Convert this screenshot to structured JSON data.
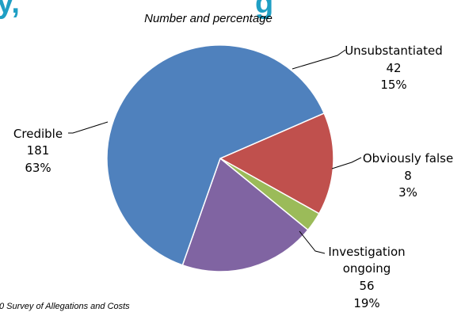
{
  "header": {
    "title_fragment_left": "y,",
    "title_fragment_right": "g",
    "title_color": "#1f9fc4"
  },
  "chart_data": {
    "type": "pie",
    "subtitle": "Number and percentage",
    "start_angle_deg": 66.5,
    "direction": "clockwise",
    "slices": [
      {
        "name": "Unsubstantiated",
        "value": 42,
        "percent": "15%",
        "color": "#c0504d"
      },
      {
        "name": "Obviously false",
        "value": 8,
        "percent": "3%",
        "color": "#9bbb59"
      },
      {
        "name": "Investigation ongoing",
        "value": 56,
        "percent": "19%",
        "color": "#8064a2"
      },
      {
        "name": "Credible",
        "value": 181,
        "percent": "63%",
        "color": "#4f81bd"
      }
    ]
  },
  "labels": {
    "unsubstantiated": {
      "name": "Unsubstantiated",
      "value": "42",
      "percent": "15%"
    },
    "obviously_false": {
      "name": "Obviously false",
      "value": "8",
      "percent": "3%"
    },
    "investigation": {
      "name_line1": "Investigation",
      "name_line2": "ongoing",
      "value": "56",
      "percent": "19%"
    },
    "credible": {
      "name": "Credible",
      "value": "181",
      "percent": "63%"
    }
  },
  "source": {
    "text": "0 Survey of Allegations and Costs"
  }
}
